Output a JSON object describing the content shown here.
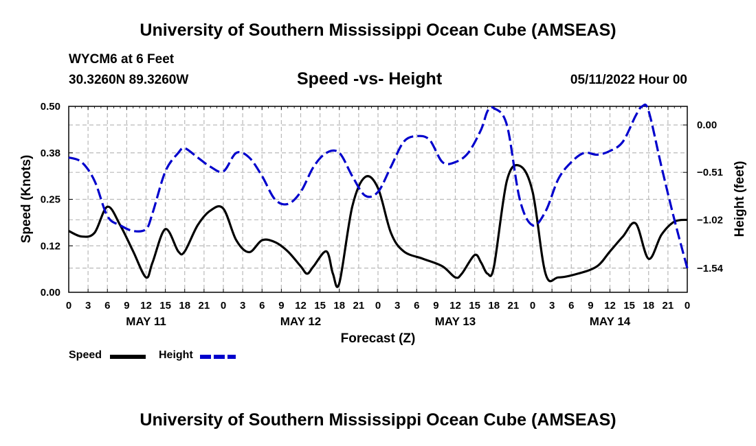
{
  "header": {
    "title": "University of Southern Mississippi Ocean Cube (AMSEAS)",
    "station": "WYCM6 at 6 Feet",
    "coordinates": "30.3260N  89.3260W",
    "subtitle": "Speed -vs- Height",
    "date": "05/11/2022 Hour 00"
  },
  "footer": {
    "title": "University of Southern Mississippi Ocean Cube (AMSEAS)"
  },
  "chart_data": {
    "type": "line",
    "title": "Speed -vs- Height",
    "xlabel": "Forecast (Z)",
    "ylabel_left": "Speed (Knots)",
    "ylabel_right": "Height (feet)",
    "x_range": [
      0,
      96
    ],
    "x_step_hours": 3,
    "x_tick_labels": [
      "0",
      "3",
      "6",
      "9",
      "12",
      "15",
      "18",
      "21",
      "0",
      "3",
      "6",
      "9",
      "12",
      "15",
      "18",
      "21",
      "0",
      "3",
      "6",
      "9",
      "12",
      "15",
      "18",
      "21",
      "0",
      "3",
      "6",
      "9",
      "12",
      "15",
      "18",
      "21",
      "0"
    ],
    "day_labels": [
      {
        "label": "MAY 11",
        "center_hour": 12
      },
      {
        "label": "MAY 12",
        "center_hour": 36
      },
      {
        "label": "MAY 13",
        "center_hour": 60
      },
      {
        "label": "MAY 14",
        "center_hour": 84
      }
    ],
    "y_left": {
      "range": [
        0,
        0.5
      ],
      "ticks": [
        0.0,
        0.125,
        0.25,
        0.375,
        0.5
      ],
      "tick_labels": [
        "0.00",
        "0.12",
        "0.25",
        "0.38",
        "0.50"
      ]
    },
    "y_right": {
      "range": [
        -1.8,
        0.2
      ],
      "ticks": [
        0.0,
        -0.51,
        -1.02,
        -1.54
      ],
      "tick_labels": [
        "0.00",
        "−0.51",
        "−1.02",
        "−1.54"
      ]
    },
    "grid": true,
    "legend_position": "bottom-left",
    "series": [
      {
        "name": "Speed",
        "axis": "left",
        "color": "#000000",
        "dash": "solid",
        "points": [
          [
            0,
            0.165
          ],
          [
            2,
            0.15
          ],
          [
            4,
            0.16
          ],
          [
            6,
            0.23
          ],
          [
            8,
            0.18
          ],
          [
            10,
            0.11
          ],
          [
            12,
            0.04
          ],
          [
            13,
            0.08
          ],
          [
            15,
            0.17
          ],
          [
            17,
            0.11
          ],
          [
            18,
            0.11
          ],
          [
            20,
            0.18
          ],
          [
            22,
            0.22
          ],
          [
            24,
            0.225
          ],
          [
            26,
            0.14
          ],
          [
            28,
            0.108
          ],
          [
            30,
            0.14
          ],
          [
            32,
            0.135
          ],
          [
            34,
            0.11
          ],
          [
            36,
            0.07
          ],
          [
            37,
            0.05
          ],
          [
            38,
            0.07
          ],
          [
            40,
            0.11
          ],
          [
            41,
            0.05
          ],
          [
            42,
            0.025
          ],
          [
            44,
            0.23
          ],
          [
            46,
            0.31
          ],
          [
            48,
            0.28
          ],
          [
            50,
            0.16
          ],
          [
            52,
            0.11
          ],
          [
            55,
            0.09
          ],
          [
            58,
            0.07
          ],
          [
            60,
            0.04
          ],
          [
            61,
            0.05
          ],
          [
            63,
            0.1
          ],
          [
            64,
            0.08
          ],
          [
            65,
            0.05
          ],
          [
            66,
            0.07
          ],
          [
            68,
            0.3
          ],
          [
            70,
            0.34
          ],
          [
            72,
            0.27
          ],
          [
            74,
            0.05
          ],
          [
            76,
            0.04
          ],
          [
            79,
            0.05
          ],
          [
            82,
            0.07
          ],
          [
            84,
            0.11
          ],
          [
            86,
            0.15
          ],
          [
            88,
            0.185
          ],
          [
            90,
            0.09
          ],
          [
            92,
            0.155
          ],
          [
            94,
            0.19
          ],
          [
            96,
            0.195
          ]
        ]
      },
      {
        "name": "Height",
        "axis": "right",
        "color": "#0000cc",
        "dash": "dashed",
        "points": [
          [
            0,
            -0.35
          ],
          [
            2,
            -0.4
          ],
          [
            4,
            -0.6
          ],
          [
            6,
            -0.98
          ],
          [
            8,
            -1.08
          ],
          [
            10,
            -1.14
          ],
          [
            12,
            -1.12
          ],
          [
            13,
            -0.95
          ],
          [
            15,
            -0.5
          ],
          [
            17,
            -0.3
          ],
          [
            18,
            -0.25
          ],
          [
            20,
            -0.35
          ],
          [
            22,
            -0.45
          ],
          [
            24,
            -0.5
          ],
          [
            26,
            -0.3
          ],
          [
            28,
            -0.35
          ],
          [
            30,
            -0.55
          ],
          [
            32,
            -0.8
          ],
          [
            34,
            -0.85
          ],
          [
            36,
            -0.72
          ],
          [
            38,
            -0.45
          ],
          [
            40,
            -0.3
          ],
          [
            42,
            -0.3
          ],
          [
            44,
            -0.55
          ],
          [
            46,
            -0.76
          ],
          [
            48,
            -0.72
          ],
          [
            50,
            -0.45
          ],
          [
            52,
            -0.18
          ],
          [
            54,
            -0.12
          ],
          [
            56,
            -0.16
          ],
          [
            58,
            -0.4
          ],
          [
            60,
            -0.4
          ],
          [
            62,
            -0.3
          ],
          [
            64,
            -0.05
          ],
          [
            65,
            0.15
          ],
          [
            66,
            0.18
          ],
          [
            68,
            0.0
          ],
          [
            70,
            -0.8
          ],
          [
            72,
            -1.08
          ],
          [
            74,
            -0.93
          ],
          [
            76,
            -0.58
          ],
          [
            78,
            -0.4
          ],
          [
            80,
            -0.3
          ],
          [
            82,
            -0.32
          ],
          [
            84,
            -0.28
          ],
          [
            86,
            -0.18
          ],
          [
            88,
            0.1
          ],
          [
            89,
            0.2
          ],
          [
            90,
            0.15
          ],
          [
            92,
            -0.45
          ],
          [
            94,
            -1.02
          ],
          [
            96,
            -1.54
          ]
        ]
      }
    ]
  }
}
